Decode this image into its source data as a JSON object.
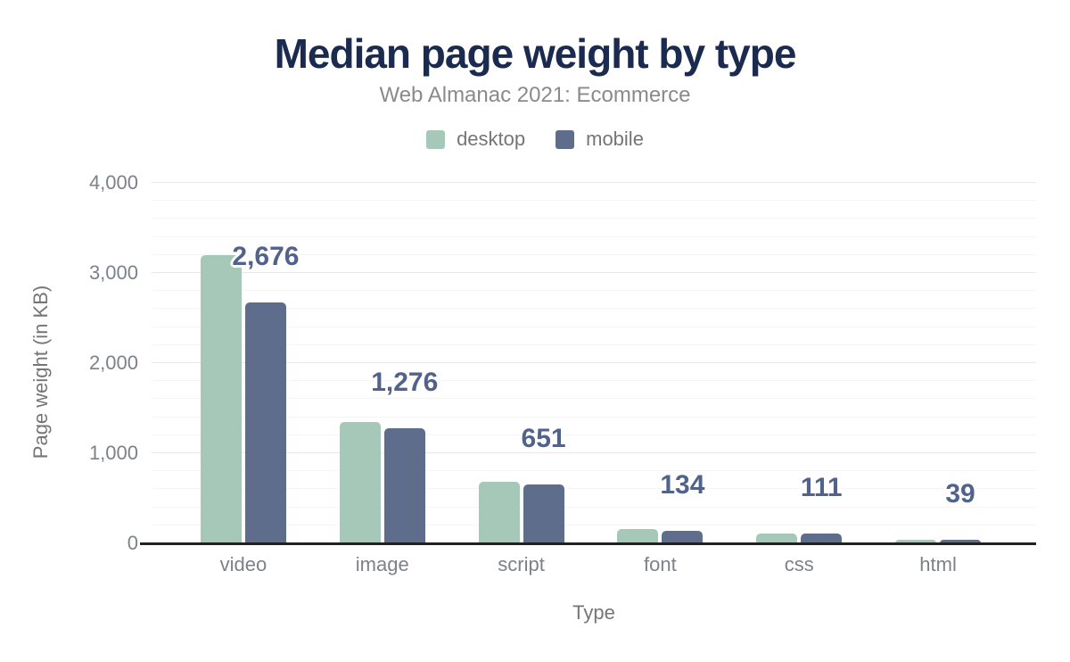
{
  "header": {
    "title": "Median page weight by type",
    "subtitle": "Web Almanac 2021: Ecommerce"
  },
  "colors": {
    "background": "#ffffff",
    "title_text": "#1b2a4f",
    "muted_text": "#757575",
    "tick_text": "#7c818a",
    "data_label_text": "#51628b",
    "desktop_bar": "#a6c8b9",
    "mobile_bar": "#5e6d8b",
    "axis_line": "#212121",
    "grid_major": "#e8e8e8",
    "grid_minor": "#f5f5f5"
  },
  "chart_data": {
    "type": "bar",
    "title": "Median page weight by type",
    "subtitle": "Web Almanac 2021: Ecommerce",
    "categories": [
      "video",
      "image",
      "script",
      "font",
      "css",
      "html"
    ],
    "series": [
      {
        "name": "desktop",
        "color": "#a6c8b9",
        "values": [
          3200,
          1350,
          680,
          160,
          107,
          42
        ]
      },
      {
        "name": "mobile",
        "color": "#5e6d8b",
        "values": [
          2676,
          1276,
          651,
          134,
          111,
          39
        ]
      }
    ],
    "data_labels": [
      "2,676",
      "1,276",
      "651",
      "134",
      "111",
      "39"
    ],
    "data_labels_series": "mobile",
    "xlabel": "Type",
    "ylabel": "Page weight (in KB)",
    "ylim": [
      0,
      4000
    ],
    "ytick_step": 1000,
    "minor_grid_step": 200,
    "yticks": [
      {
        "label": "0",
        "value": 0
      },
      {
        "label": "1,000",
        "value": 1000
      },
      {
        "label": "2,000",
        "value": 2000
      },
      {
        "label": "3,000",
        "value": 3000
      },
      {
        "label": "4,000",
        "value": 4000
      }
    ],
    "grid": true,
    "legend_position": "top"
  }
}
